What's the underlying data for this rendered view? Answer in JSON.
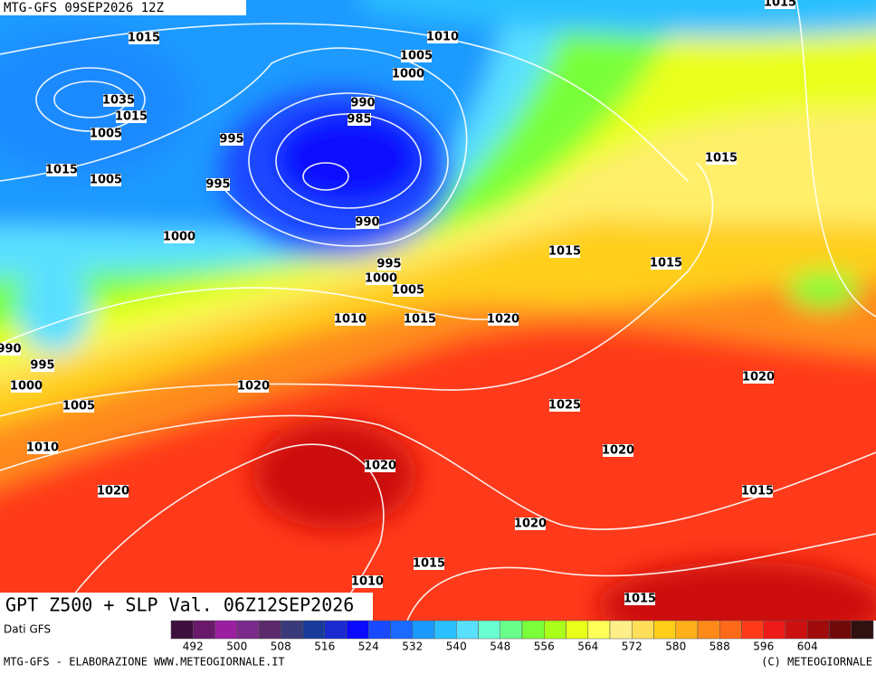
{
  "header": {
    "run_label": "MTG-GFS 09SEP2026 12Z",
    "map_title": "GPT Z500 + SLP Val. 06Z12SEP2026"
  },
  "isobar_labels": [
    "1015",
    "1010",
    "1005",
    "1000",
    "990",
    "985",
    "1035",
    "1015",
    "1005",
    "995",
    "1015",
    "1005",
    "995",
    "990",
    "1000",
    "995",
    "1000",
    "1005",
    "1015",
    "1015",
    "1015",
    "1015",
    "1010",
    "1015",
    "1020",
    "990",
    "995",
    "1000",
    "1005",
    "1020",
    "1025",
    "1020",
    "1020",
    "1010",
    "1020",
    "1020",
    "1015",
    "1020",
    "1015",
    "1010",
    "1015"
  ],
  "colorbar": {
    "source_label": "Dati GFS",
    "colors": [
      "#3c0f3c",
      "#6a1a6a",
      "#9a1fa0",
      "#7a2a8a",
      "#5a2a6a",
      "#3a3a7a",
      "#1a3a9a",
      "#1a2ad0",
      "#0a0aff",
      "#1a4aff",
      "#1a6aff",
      "#1a9aff",
      "#2ac0ff",
      "#5ae0ff",
      "#6affd0",
      "#6aff8a",
      "#7aff3a",
      "#aaff1a",
      "#eaff1a",
      "#ffff5a",
      "#ffef8a",
      "#ffdf5a",
      "#ffcf1a",
      "#ffaf1a",
      "#ff8a1a",
      "#ff6a1a",
      "#ff3a1a",
      "#ee1a1a",
      "#cc1010",
      "#a00a0a",
      "#700a0a",
      "#301010"
    ],
    "labels": [
      492,
      500,
      508,
      516,
      524,
      532,
      540,
      548,
      556,
      564,
      572,
      580,
      588,
      596,
      604
    ]
  },
  "footer": {
    "left": "MTG-GFS - ELABORAZIONE WWW.METEOGIORNALE.IT",
    "right": "(C) METEOGIORNALE"
  }
}
